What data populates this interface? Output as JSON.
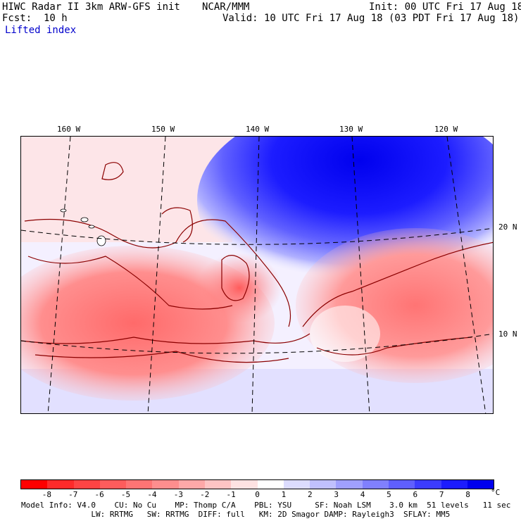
{
  "header": {
    "model": "HIWC Radar II 3km ARW-GFS init",
    "org": "NCAR/MMM",
    "init": "Init: 00 UTC Fri 17 Aug 18",
    "fcst": "Fcst:  10 h",
    "valid": "Valid: 10 UTC Fri 17 Aug 18 (03 PDT Fri 17 Aug 18)",
    "field": "Lifted index"
  },
  "map": {
    "lon_labels": [
      "160 W",
      "150 W",
      "140 W",
      "130 W",
      "120 W"
    ],
    "lat_labels": [
      "20 N",
      "10 N"
    ]
  },
  "colorbar": {
    "labels": [
      "-8",
      "-7",
      "-6",
      "-5",
      "-4",
      "-3",
      "-2",
      "-1",
      "0",
      "1",
      "2",
      "3",
      "4",
      "5",
      "6",
      "7",
      "8"
    ],
    "unit": "°C",
    "colors": [
      "#ff0000",
      "#ff2a2a",
      "#ff4444",
      "#ff5c5c",
      "#ff7474",
      "#ff8e8e",
      "#ffa8a8",
      "#ffc4c4",
      "#ffe2e2",
      "#ffffff",
      "#dcdcff",
      "#c0c0ff",
      "#a0a0ff",
      "#8080ff",
      "#5f5fff",
      "#3c3cff",
      "#1c1cff",
      "#0000ee"
    ]
  },
  "footer": {
    "line1": "Model Info: V4.0    CU: No Cu    MP: Thomp C/A    PBL: YSU     SF: Noah LSM    3.0 km  51 levels   11 sec",
    "line2": "               LW: RRTMG   SW: RRTMG  DIFF: full   KM: 2D Smagor DAMP: Rayleigh3  SFLAY: MM5"
  }
}
